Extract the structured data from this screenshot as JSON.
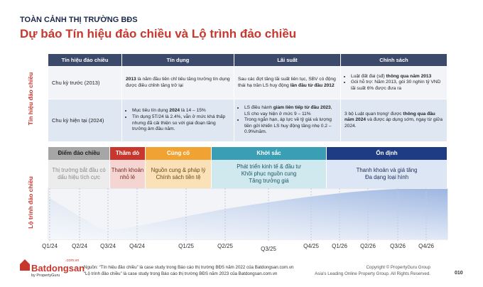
{
  "header": {
    "kicker": "TOÀN CẢNH THỊ TRƯỜNG BĐS",
    "title": "Dự báo Tín hiệu đảo chiều và Lộ trình đảo chiều"
  },
  "side_labels": [
    "Tín hiệu đảo chiều",
    "Lộ trình đảo chiều"
  ],
  "table": {
    "columns": [
      "Tín hiệu đảo chiều",
      "Tín dụng",
      "Lãi suất",
      "Chính sách"
    ],
    "rows": [
      {
        "label": "Chu kỳ trước (2013)",
        "cells": [
          {
            "bullets": false,
            "items": [
              [
                {
                  "text": "2013",
                  "bold": true
                },
                {
                  "text": " là năm đầu tiên chỉ tiêu tăng trưởng tín dụng được điều chỉnh tăng trở lại"
                }
              ]
            ]
          },
          {
            "bullets": false,
            "items": [
              [
                {
                  "text": "Sau các đợt tăng lãi suất liên tục, SBV có động thái hạ trần LS huy động "
                },
                {
                  "text": "lần đầu từ đầu 2012",
                  "bold": true
                }
              ]
            ]
          },
          {
            "bullets": true,
            "items": [
              [
                {
                  "text": "Luật đất đai (sđ) "
                },
                {
                  "text": "thông qua năm 2013",
                  "bold": true
                }
              ],
              [
                {
                  "text": "Gói hỗ trợ: Năm 2013, gói 30 nghìn tỷ VND lãi suất 6% được đưa ra"
                }
              ]
            ]
          }
        ]
      },
      {
        "label": "Chu kỳ hiện tại (2024)",
        "cells": [
          {
            "bullets": true,
            "items": [
              [
                {
                  "text": "Mục tiêu tín dụng "
                },
                {
                  "text": "2024",
                  "bold": true
                },
                {
                  "text": " là 14 – 15%"
                }
              ],
              [
                {
                  "text": "Tín dụng 5T/24 là 2.4%, vẫn ở mức khá thấp nhưng đã cải thiện so với giai đoạn tăng trưởng âm đầu năm."
                }
              ]
            ]
          },
          {
            "bullets": true,
            "items": [
              [
                {
                  "text": "LS điều hành "
                },
                {
                  "text": "giảm liên tiếp từ đầu 2023",
                  "bold": true
                },
                {
                  "text": ", LS cho vay hiện ở mức 9 – 11%"
                }
              ],
              [
                {
                  "text": "Trong ngắn hạn, áp lực về tỷ giá và lượng tiền gửi khiến LS huy động tăng nhẹ 0.2 – 0.9%/năm."
                }
              ]
            ]
          },
          {
            "bullets": false,
            "items": [
              [
                {
                  "text": "3 bộ Luật quan trọng¹ được "
                },
                {
                  "text": "thông qua đầu năm 2024",
                  "bold": true
                },
                {
                  "text": " và được áp dụng sớm, ngay từ giữa 2024."
                }
              ]
            ]
          }
        ]
      }
    ]
  },
  "roadmap": {
    "phases": [
      {
        "name": "Điểm đảo chiều",
        "lines": [
          "Thị trường bắt đầu có dấu hiệu tích cực"
        ],
        "color": "#a6a6a6",
        "tint": "#ececec",
        "text_color": "#222222",
        "desc_color": "#8a8a8a"
      },
      {
        "name": "Thăm dò",
        "lines": [
          "Thanh khoản nhỏ lẻ"
        ],
        "color": "#c8372d",
        "tint": "#f5d5d1",
        "text_color": "#ffffff",
        "desc_color": "#7a2a22"
      },
      {
        "name": "Củng cố",
        "lines": [
          "Nguồn cung & pháp lý",
          "Chính sách tiền tệ"
        ],
        "color": "#f0a332",
        "tint": "#fbe1b8",
        "text_color": "#ffffff",
        "desc_color": "#6b4a12"
      },
      {
        "name": "Khởi sắc",
        "lines": [
          "Phát triển kinh tế & đầu tư",
          "Khôi phục nguồn cung",
          "Tăng trưởng giá"
        ],
        "color": "#3a9fb5",
        "tint": "#cfe9ef",
        "text_color": "#ffffff",
        "desc_color": "#1f5563"
      },
      {
        "name": "Ổn định",
        "lines": [
          "Thanh khoản và giá tăng",
          "Đa dạng loại hình"
        ],
        "color": "#1e3c84",
        "tint": "#dde6f4",
        "text_color": "#ffffff",
        "desc_color": "#1e2f5a"
      }
    ],
    "quarters": [
      "Q1/24",
      "Q2/24",
      "Q3/24",
      "Q4/24",
      "Q1/25",
      "Q2/25",
      "Q3/25",
      "Q4/25",
      "Q1/26",
      "Q2/26",
      "Q3/26",
      "Q4/26"
    ]
  },
  "footer": {
    "logo": {
      "brand": "Batdongsan",
      "domain": ".com.vn",
      "by": "by PropertyGuru"
    },
    "sources": [
      "Nguồn: “Tín hiệu đảo chiều” là case study trong Báo cáo thị trường BĐS năm 2022 của Batdongsan.com.vn",
      "“Lộ trình đảo chiều” là case study trong Báo cáo thị trường BĐS năm 2023 của Batdongsan.com.vn"
    ],
    "copyright": [
      "Copyright © PropertyGuru Group",
      "Asia's Leading Online Property Group. All Rights Reserved."
    ],
    "page": "010"
  }
}
